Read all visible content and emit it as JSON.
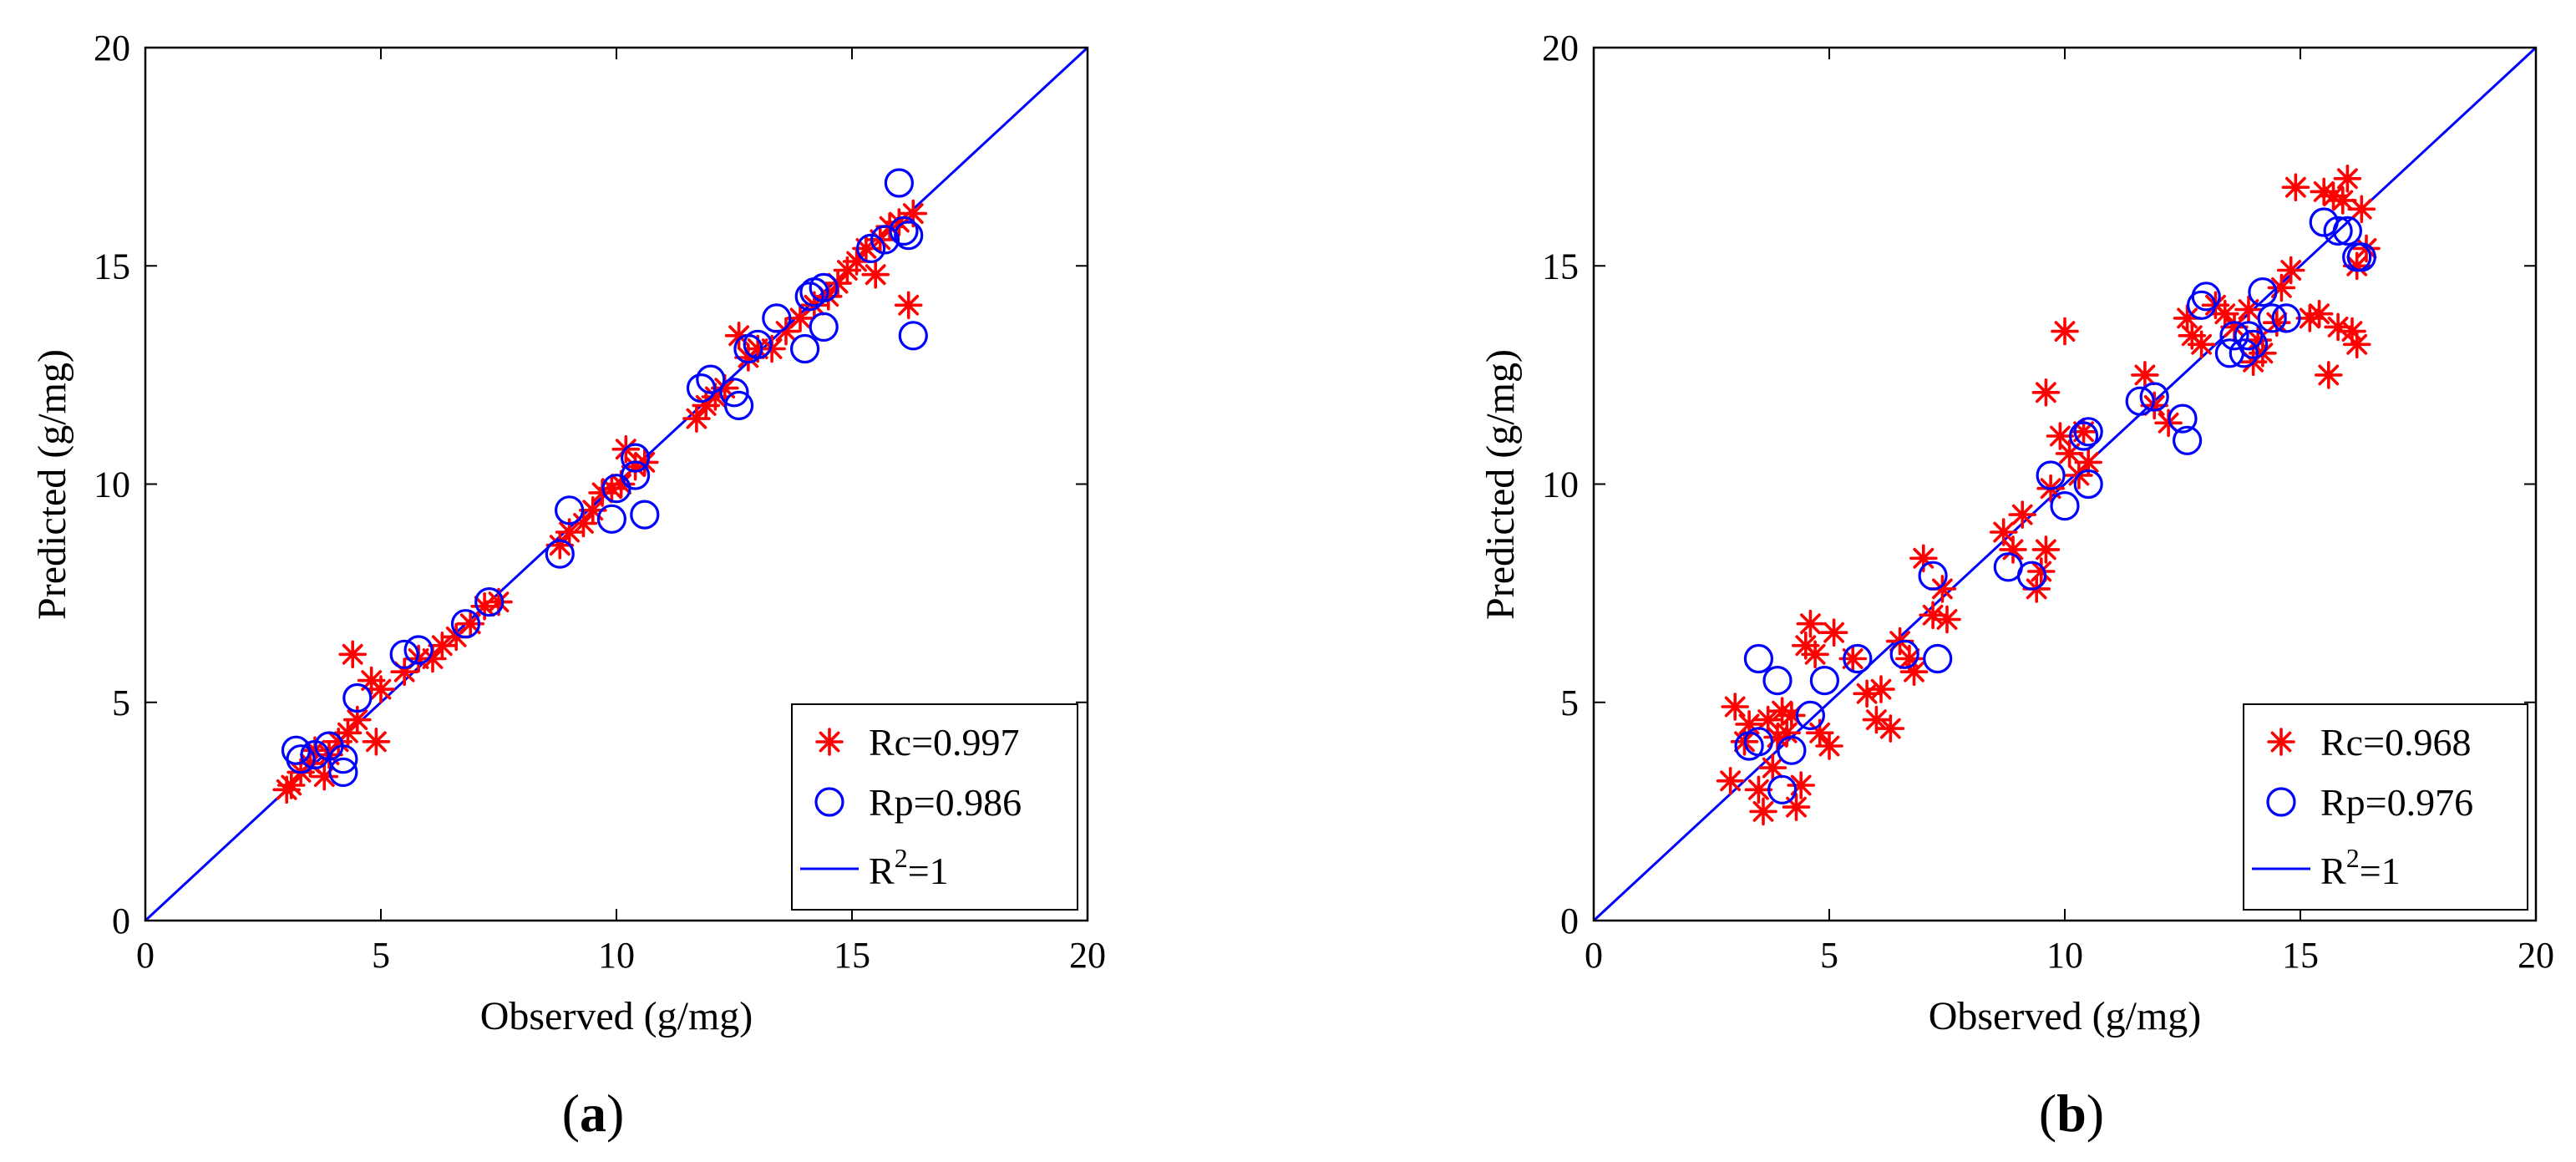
{
  "colors": {
    "calibration": "#ff0000",
    "prediction": "#0000ff",
    "fit_line": "#0000ff",
    "axes": "#000000",
    "background": "#ffffff"
  },
  "chart_data": [
    {
      "type": "scatter",
      "panel_label": "a",
      "xlabel": "Observed (g/mg)",
      "ylabel": "Predicted (g/mg)",
      "xlim": [
        0,
        20
      ],
      "ylim": [
        0,
        20
      ],
      "xticks": [
        0,
        5,
        10,
        15,
        20
      ],
      "yticks": [
        0,
        5,
        10,
        15,
        20
      ],
      "grid": false,
      "legend_position": "bottom-right",
      "legend": {
        "rc": "Rc=0.997",
        "rp": "Rp=0.986",
        "line_prefix": "R",
        "line_sup": "2",
        "line_suffix": "=1"
      },
      "series": [
        {
          "name": "Rc=0.997",
          "marker": "asterisk",
          "color": "#ff0000",
          "points": [
            [
              3.0,
              3.0
            ],
            [
              3.1,
              3.1
            ],
            [
              3.3,
              3.4
            ],
            [
              3.5,
              3.6
            ],
            [
              3.6,
              3.9
            ],
            [
              3.8,
              3.3
            ],
            [
              3.9,
              3.8
            ],
            [
              4.1,
              4.1
            ],
            [
              4.3,
              4.3
            ],
            [
              4.4,
              6.1
            ],
            [
              4.5,
              4.6
            ],
            [
              4.8,
              5.5
            ],
            [
              4.9,
              4.1
            ],
            [
              5.0,
              5.3
            ],
            [
              5.5,
              5.7
            ],
            [
              5.8,
              6.0
            ],
            [
              6.1,
              6.0
            ],
            [
              6.3,
              6.3
            ],
            [
              6.6,
              6.5
            ],
            [
              6.9,
              6.8
            ],
            [
              7.2,
              7.2
            ],
            [
              7.5,
              7.3
            ],
            [
              8.8,
              8.6
            ],
            [
              9.0,
              8.9
            ],
            [
              9.3,
              9.1
            ],
            [
              9.5,
              9.4
            ],
            [
              9.7,
              9.8
            ],
            [
              9.9,
              9.9
            ],
            [
              10.1,
              10.0
            ],
            [
              10.2,
              10.8
            ],
            [
              10.4,
              10.4
            ],
            [
              10.6,
              10.5
            ],
            [
              11.7,
              11.5
            ],
            [
              11.9,
              11.8
            ],
            [
              12.1,
              12.0
            ],
            [
              12.3,
              12.2
            ],
            [
              12.6,
              13.4
            ],
            [
              12.8,
              12.9
            ],
            [
              13.0,
              13.1
            ],
            [
              13.3,
              13.1
            ],
            [
              13.6,
              13.5
            ],
            [
              13.9,
              13.8
            ],
            [
              14.2,
              14.1
            ],
            [
              14.5,
              14.3
            ],
            [
              14.7,
              14.6
            ],
            [
              14.9,
              14.9
            ],
            [
              15.1,
              15.1
            ],
            [
              15.3,
              15.4
            ],
            [
              15.5,
              14.8
            ],
            [
              15.6,
              15.6
            ],
            [
              15.8,
              15.9
            ],
            [
              16.0,
              16.0
            ],
            [
              16.2,
              14.1
            ],
            [
              16.3,
              16.2
            ]
          ]
        },
        {
          "name": "Rp=0.986",
          "marker": "circle",
          "color": "#0000ff",
          "points": [
            [
              3.2,
              3.9
            ],
            [
              3.3,
              3.7
            ],
            [
              3.6,
              3.8
            ],
            [
              3.9,
              4.0
            ],
            [
              4.2,
              3.4
            ],
            [
              4.2,
              3.7
            ],
            [
              4.5,
              5.1
            ],
            [
              5.5,
              6.1
            ],
            [
              5.8,
              6.2
            ],
            [
              6.8,
              6.8
            ],
            [
              7.3,
              7.3
            ],
            [
              8.8,
              8.4
            ],
            [
              9.0,
              9.4
            ],
            [
              9.9,
              9.2
            ],
            [
              10.0,
              9.9
            ],
            [
              10.4,
              10.2
            ],
            [
              10.4,
              10.6
            ],
            [
              10.6,
              9.3
            ],
            [
              11.8,
              12.2
            ],
            [
              12.0,
              12.4
            ],
            [
              12.5,
              12.1
            ],
            [
              12.6,
              11.8
            ],
            [
              12.8,
              13.1
            ],
            [
              13.0,
              13.2
            ],
            [
              13.4,
              13.8
            ],
            [
              14.0,
              13.1
            ],
            [
              14.1,
              14.3
            ],
            [
              14.2,
              14.4
            ],
            [
              14.4,
              13.6
            ],
            [
              14.4,
              14.5
            ],
            [
              15.4,
              15.4
            ],
            [
              15.7,
              15.6
            ],
            [
              16.0,
              16.9
            ],
            [
              16.1,
              15.8
            ],
            [
              16.2,
              15.7
            ],
            [
              16.3,
              13.4
            ]
          ]
        },
        {
          "name": "R2=1",
          "marker": "line",
          "color": "#0000ff",
          "points": [
            [
              0,
              0
            ],
            [
              20,
              20
            ]
          ]
        }
      ]
    },
    {
      "type": "scatter",
      "panel_label": "b",
      "xlabel": "Observed (g/mg)",
      "ylabel": "Predicted (g/mg)",
      "xlim": [
        0,
        20
      ],
      "ylim": [
        0,
        20
      ],
      "xticks": [
        0,
        5,
        10,
        15,
        20
      ],
      "yticks": [
        0,
        5,
        10,
        15,
        20
      ],
      "grid": false,
      "legend_position": "bottom-right",
      "legend": {
        "rc": "Rc=0.968",
        "rp": "Rp=0.976",
        "line_prefix": "R",
        "line_sup": "2",
        "line_suffix": "=1"
      },
      "series": [
        {
          "name": "Rc=0.968",
          "marker": "asterisk",
          "color": "#ff0000",
          "points": [
            [
              2.9,
              3.2
            ],
            [
              3.0,
              4.9
            ],
            [
              3.2,
              4.1
            ],
            [
              3.3,
              4.5
            ],
            [
              3.5,
              3.0
            ],
            [
              3.6,
              2.5
            ],
            [
              3.7,
              4.6
            ],
            [
              3.8,
              3.5
            ],
            [
              3.9,
              4.2
            ],
            [
              4.0,
              4.8
            ],
            [
              4.1,
              4.3
            ],
            [
              4.2,
              4.7
            ],
            [
              4.3,
              2.6
            ],
            [
              4.4,
              3.1
            ],
            [
              4.5,
              6.3
            ],
            [
              4.6,
              6.8
            ],
            [
              4.7,
              6.1
            ],
            [
              4.8,
              4.3
            ],
            [
              5.0,
              4.0
            ],
            [
              5.1,
              6.6
            ],
            [
              5.5,
              6.0
            ],
            [
              5.8,
              5.2
            ],
            [
              6.0,
              4.6
            ],
            [
              6.1,
              5.3
            ],
            [
              6.3,
              4.4
            ],
            [
              6.5,
              6.4
            ],
            [
              6.7,
              6.0
            ],
            [
              6.8,
              5.7
            ],
            [
              7.0,
              8.3
            ],
            [
              7.2,
              7.0
            ],
            [
              7.4,
              7.6
            ],
            [
              7.5,
              6.9
            ],
            [
              8.7,
              8.9
            ],
            [
              8.9,
              8.5
            ],
            [
              9.1,
              9.3
            ],
            [
              9.4,
              7.6
            ],
            [
              9.5,
              8.0
            ],
            [
              9.6,
              12.1
            ],
            [
              9.6,
              8.5
            ],
            [
              9.7,
              9.9
            ],
            [
              9.9,
              11.1
            ],
            [
              10.0,
              13.5
            ],
            [
              10.1,
              10.7
            ],
            [
              10.3,
              10.2
            ],
            [
              10.4,
              11.2
            ],
            [
              10.5,
              10.5
            ],
            [
              11.7,
              12.5
            ],
            [
              11.9,
              11.8
            ],
            [
              12.2,
              11.4
            ],
            [
              12.6,
              13.8
            ],
            [
              12.7,
              13.4
            ],
            [
              12.9,
              13.2
            ],
            [
              13.2,
              14.1
            ],
            [
              13.4,
              13.9
            ],
            [
              13.6,
              13.6
            ],
            [
              13.9,
              14.0
            ],
            [
              14.0,
              12.8
            ],
            [
              14.1,
              13.3
            ],
            [
              14.2,
              13.0
            ],
            [
              14.5,
              13.7
            ],
            [
              14.6,
              14.5
            ],
            [
              14.8,
              14.9
            ],
            [
              14.9,
              16.8
            ],
            [
              15.2,
              13.8
            ],
            [
              15.4,
              13.9
            ],
            [
              15.5,
              16.7
            ],
            [
              15.6,
              12.5
            ],
            [
              15.7,
              16.6
            ],
            [
              15.8,
              13.6
            ],
            [
              15.9,
              16.5
            ],
            [
              16.0,
              17.0
            ],
            [
              16.1,
              13.5
            ],
            [
              16.2,
              13.2
            ],
            [
              16.2,
              15.0
            ],
            [
              16.3,
              16.3
            ],
            [
              16.4,
              15.4
            ]
          ]
        },
        {
          "name": "Rp=0.976",
          "marker": "circle",
          "color": "#0000ff",
          "points": [
            [
              3.3,
              4.0
            ],
            [
              3.5,
              6.0
            ],
            [
              3.5,
              4.1
            ],
            [
              3.9,
              5.5
            ],
            [
              4.0,
              3.0
            ],
            [
              4.2,
              3.9
            ],
            [
              4.6,
              4.7
            ],
            [
              4.9,
              5.5
            ],
            [
              5.6,
              6.0
            ],
            [
              6.6,
              6.1
            ],
            [
              7.2,
              7.9
            ],
            [
              7.3,
              6.0
            ],
            [
              8.8,
              8.1
            ],
            [
              9.3,
              7.9
            ],
            [
              9.7,
              10.2
            ],
            [
              10.0,
              9.5
            ],
            [
              10.4,
              11.1
            ],
            [
              10.5,
              10.0
            ],
            [
              10.5,
              11.2
            ],
            [
              11.6,
              11.9
            ],
            [
              11.9,
              12.0
            ],
            [
              12.5,
              11.5
            ],
            [
              12.6,
              11.0
            ],
            [
              12.9,
              14.1
            ],
            [
              13.0,
              14.3
            ],
            [
              13.5,
              13.0
            ],
            [
              13.6,
              13.4
            ],
            [
              13.8,
              13.0
            ],
            [
              13.9,
              13.4
            ],
            [
              14.0,
              13.2
            ],
            [
              14.2,
              14.4
            ],
            [
              14.4,
              13.8
            ],
            [
              14.7,
              13.8
            ],
            [
              15.5,
              16.0
            ],
            [
              15.8,
              15.8
            ],
            [
              16.0,
              15.8
            ],
            [
              16.2,
              15.2
            ],
            [
              16.3,
              15.2
            ]
          ]
        },
        {
          "name": "R2=1",
          "marker": "line",
          "color": "#0000ff",
          "points": [
            [
              0,
              0
            ],
            [
              20,
              20
            ]
          ]
        }
      ]
    }
  ]
}
